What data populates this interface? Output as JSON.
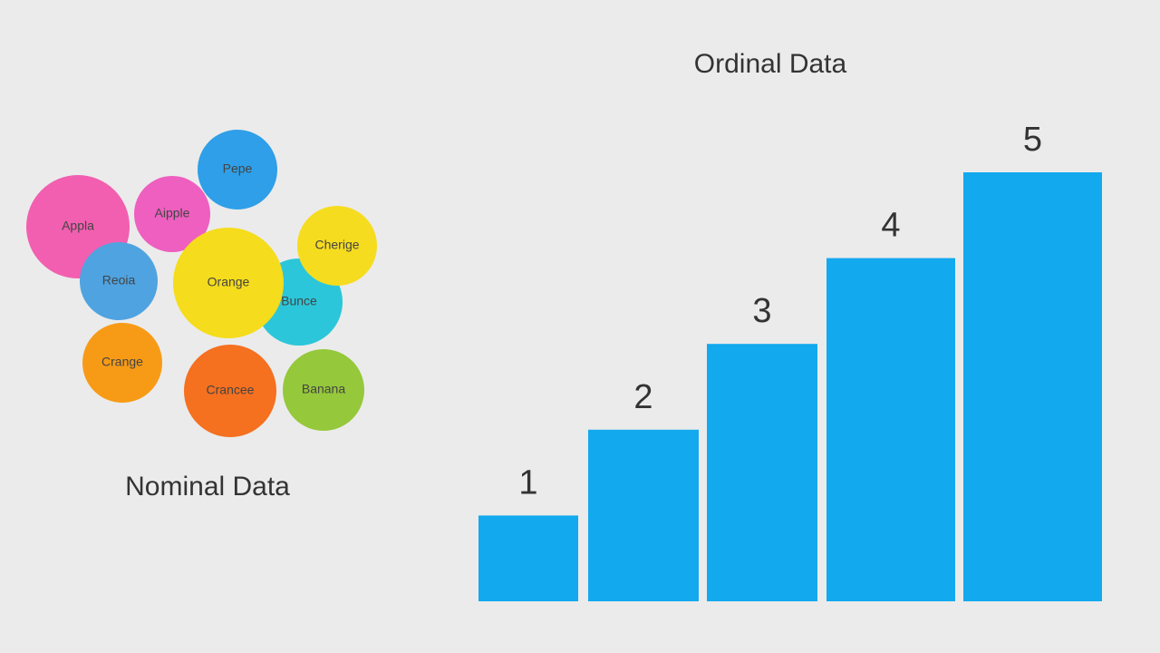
{
  "nominal": {
    "title": "Nominal Data",
    "bubbles": [
      {
        "label": "Appla",
        "color": "#f25fb0"
      },
      {
        "label": "Aipple",
        "color": "#ee5fc0"
      },
      {
        "label": "Pepe",
        "color": "#2e9fe8"
      },
      {
        "label": "Bunce",
        "color": "#2bc6d9"
      },
      {
        "label": "Cherige",
        "color": "#f6dc1f"
      },
      {
        "label": "Reoia",
        "color": "#4fa3e0"
      },
      {
        "label": "Orange",
        "color": "#f5dc1c"
      },
      {
        "label": "Crange",
        "color": "#f79b16"
      },
      {
        "label": "Crancee",
        "color": "#f5701f"
      },
      {
        "label": "Banana",
        "color": "#95c83a"
      }
    ]
  },
  "ordinal": {
    "title": "Ordinal Data",
    "values": [
      1,
      2,
      3,
      4,
      5
    ],
    "color": "#12a9ef"
  }
}
